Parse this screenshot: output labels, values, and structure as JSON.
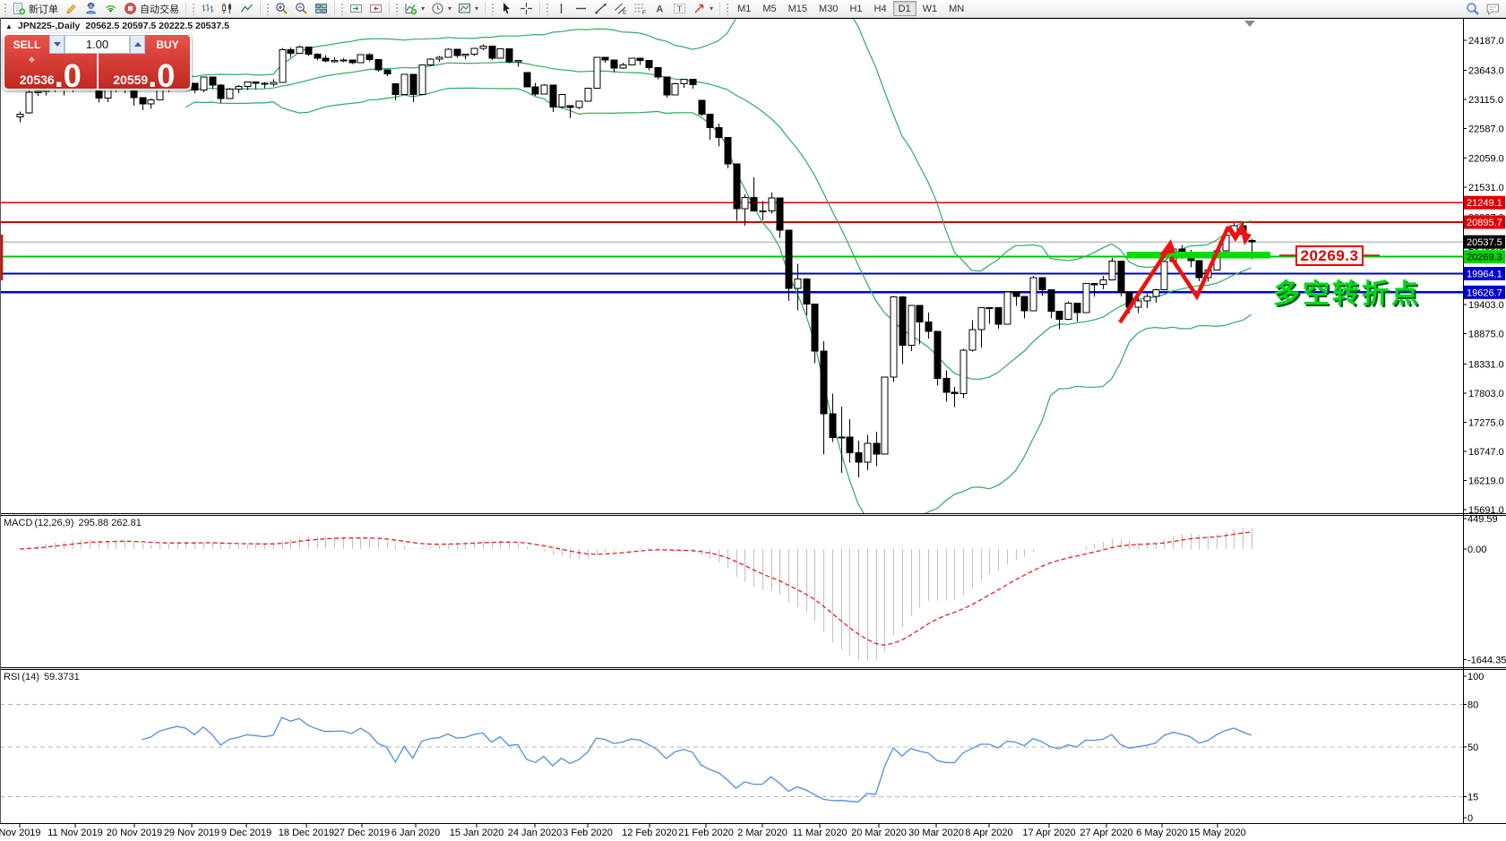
{
  "toolbar": {
    "new_order_label": "新订单",
    "autotrade_label": "自动交易",
    "timeframes": [
      "M1",
      "M5",
      "M15",
      "M30",
      "H1",
      "H4",
      "D1",
      "W1",
      "MN"
    ],
    "active_timeframe": "D1",
    "icons": [
      "new-order",
      "crayon",
      "support",
      "signal",
      "autotrade",
      "bar-chart",
      "candle-chart",
      "line-chart",
      "zoom-in",
      "zoom-out",
      "tile-windows",
      "auto-scroll",
      "chart-shift",
      "indicators",
      "periods",
      "templates",
      "cursor",
      "crosshair",
      "vertical-line",
      "horizontal-line",
      "trendline",
      "equidistant-channel",
      "fibonacci",
      "text",
      "text-label",
      "arrows",
      "search",
      "chat"
    ]
  },
  "window_title": {
    "collapse_arrow": "▲",
    "symbol_period": "JPN225-,Daily",
    "ohlc": "20562.5 20597.5 20222.5 20537.5"
  },
  "trade_panel": {
    "sell_label": "SELL",
    "buy_label": "BUY",
    "volume": "1.00",
    "sell_price_int": "20536",
    "sell_price_frac": ".0",
    "buy_price_int": "20559",
    "buy_price_frac": ".0"
  },
  "chart_data": {
    "type": "candlestick",
    "symbol": "JPN225-",
    "period": "Daily",
    "price_axis_ticks": [
      "24187.0",
      "23643.0",
      "23115.0",
      "22587.0",
      "22059.0",
      "21531.0",
      "20987.0",
      "20459.0",
      "19403.0",
      "18875.0",
      "18331.0",
      "17803.0",
      "17275.0",
      "16747.0",
      "16219.0",
      "15691.0"
    ],
    "x_axis_labels": [
      "Nov 2019",
      "11 Nov 2019",
      "20 Nov 2019",
      "29 Nov 2019",
      "9 Dec 2019",
      "18 Dec 2019",
      "27 Dec 2019",
      "6 Jan 2020",
      "15 Jan 2020",
      "24 Jan 2020",
      "3 Feb 2020",
      "12 Feb 2020",
      "21 Feb 2020",
      "2 Mar 2020",
      "11 Mar 2020",
      "20 Mar 2020",
      "30 Mar 2020",
      "8 Apr 2020",
      "17 Apr 2020",
      "27 Apr 2020",
      "6 May 2020",
      "15 May 2020"
    ],
    "price_lines": [
      {
        "price": 21249.1,
        "label": "21249.1",
        "color": "#dd0000",
        "label_bg": "#dd0000",
        "label_fg": "#ffffff",
        "width": 1.6
      },
      {
        "price": 20895.7,
        "label": "20895.7",
        "color": "#dd0000",
        "label_bg": "#dd0000",
        "label_fg": "#ffffff",
        "width": 1.6
      },
      {
        "price": 20537.5,
        "label": "20537.5",
        "color": "#c0c0c0",
        "label_bg": "#000000",
        "label_fg": "#ffffff",
        "width": 1.6,
        "role": "current-price"
      },
      {
        "price": 20269.3,
        "label": "20269.3",
        "color": "#00c400",
        "label_bg": "#00d400",
        "label_fg": "#000000",
        "width": 2
      },
      {
        "price": 19964.1,
        "label": "19964.1",
        "color": "#0000d0",
        "label_bg": "#0000d0",
        "label_fg": "#ffffff",
        "width": 2.4
      },
      {
        "price": 19626.7,
        "label": "19626.7",
        "color": "#0000d0",
        "label_bg": "#0000d0",
        "label_fg": "#ffffff",
        "width": 2.4
      }
    ],
    "candle_colors": {
      "up_fill": "#ffffff",
      "down_fill": "#000000",
      "outline": "#000000"
    },
    "bollinger": {
      "period": 20,
      "deviation": 2,
      "color": "#2faa62"
    },
    "candles_ohlc": [
      [
        22800,
        22900,
        22700,
        22850
      ],
      [
        22870,
        23280,
        22860,
        23250
      ],
      [
        23250,
        23330,
        23180,
        23260
      ],
      [
        23260,
        23350,
        23190,
        23300
      ],
      [
        23310,
        23420,
        23250,
        23330
      ],
      [
        23330,
        23400,
        23190,
        23390
      ],
      [
        23390,
        23400,
        23250,
        23330
      ],
      [
        23330,
        23540,
        23300,
        23520
      ],
      [
        23480,
        23510,
        23270,
        23320
      ],
      [
        23310,
        23340,
        23060,
        23140
      ],
      [
        23140,
        23340,
        23070,
        23300
      ],
      [
        23300,
        23430,
        23250,
        23420
      ],
      [
        23420,
        23450,
        23230,
        23290
      ],
      [
        23290,
        23300,
        23000,
        23150
      ],
      [
        23150,
        23160,
        22920,
        23040
      ],
      [
        23040,
        23130,
        22950,
        23110
      ],
      [
        23110,
        23300,
        23100,
        23290
      ],
      [
        23290,
        23390,
        23250,
        23370
      ],
      [
        23370,
        23450,
        23300,
        23440
      ],
      [
        23440,
        23450,
        23340,
        23410
      ],
      [
        23410,
        23420,
        23230,
        23290
      ],
      [
        23290,
        23530,
        23250,
        23520
      ],
      [
        23520,
        23530,
        23300,
        23380
      ],
      [
        23380,
        23390,
        23050,
        23135
      ],
      [
        23135,
        23330,
        23130,
        23300
      ],
      [
        23300,
        23380,
        23230,
        23350
      ],
      [
        23350,
        23440,
        23290,
        23430
      ],
      [
        23430,
        23440,
        23310,
        23410
      ],
      [
        23410,
        23430,
        23320,
        23390
      ],
      [
        23390,
        23480,
        23350,
        23425
      ],
      [
        23425,
        24050,
        23420,
        24020
      ],
      [
        24020,
        24060,
        23880,
        23950
      ],
      [
        23950,
        24090,
        23940,
        24065
      ],
      [
        24065,
        24070,
        23900,
        23935
      ],
      [
        23935,
        23950,
        23820,
        23865
      ],
      [
        23865,
        23920,
        23790,
        23815
      ],
      [
        23815,
        23880,
        23780,
        23820
      ],
      [
        23820,
        23870,
        23790,
        23830
      ],
      [
        23830,
        23840,
        23760,
        23785
      ],
      [
        23785,
        23930,
        23780,
        23925
      ],
      [
        23925,
        23950,
        23810,
        23840
      ],
      [
        23840,
        23850,
        23620,
        23655
      ],
      [
        23655,
        23660,
        23540,
        23580
      ],
      [
        23400,
        23410,
        23100,
        23205
      ],
      [
        23205,
        23580,
        23200,
        23575
      ],
      [
        23575,
        23580,
        23070,
        23205
      ],
      [
        23205,
        23750,
        23200,
        23740
      ],
      [
        23740,
        23860,
        23720,
        23850
      ],
      [
        23850,
        23900,
        23800,
        23880
      ],
      [
        23880,
        24040,
        23870,
        24025
      ],
      [
        24025,
        24030,
        23870,
        23915
      ],
      [
        23915,
        23940,
        23850,
        23935
      ],
      [
        23935,
        24050,
        23900,
        24040
      ],
      [
        24040,
        24115,
        24010,
        24085
      ],
      [
        24085,
        24090,
        23830,
        23865
      ],
      [
        23865,
        24035,
        23860,
        24030
      ],
      [
        24030,
        24040,
        23770,
        23795
      ],
      [
        23795,
        23830,
        23710,
        23825
      ],
      [
        23600,
        23610,
        23340,
        23345
      ],
      [
        23345,
        23420,
        23180,
        23215
      ],
      [
        23215,
        23390,
        23210,
        23380
      ],
      [
        23380,
        23385,
        22890,
        22980
      ],
      [
        22980,
        23210,
        22960,
        23205
      ],
      [
        23000,
        23010,
        22780,
        22970
      ],
      [
        22970,
        23090,
        22940,
        23085
      ],
      [
        23085,
        23325,
        23080,
        23320
      ],
      [
        23320,
        23880,
        23320,
        23875
      ],
      [
        23875,
        23880,
        23780,
        23830
      ],
      [
        23830,
        23835,
        23600,
        23685
      ],
      [
        23685,
        23780,
        23670,
        23740
      ],
      [
        23740,
        23870,
        23730,
        23860
      ],
      [
        23860,
        23870,
        23740,
        23825
      ],
      [
        23825,
        23830,
        23640,
        23690
      ],
      [
        23690,
        23700,
        23480,
        23525
      ],
      [
        23525,
        23530,
        23150,
        23195
      ],
      [
        23195,
        23420,
        23190,
        23400
      ],
      [
        23400,
        23490,
        23330,
        23480
      ],
      [
        23480,
        23485,
        23310,
        23385
      ],
      [
        23100,
        23110,
        22820,
        22850
      ],
      [
        22850,
        22860,
        22390,
        22605
      ],
      [
        22605,
        22680,
        22270,
        22425
      ],
      [
        22425,
        22430,
        21870,
        21950
      ],
      [
        21950,
        21960,
        20920,
        21140
      ],
      [
        21140,
        21400,
        20830,
        21345
      ],
      [
        21345,
        21710,
        21080,
        21100
      ],
      [
        21100,
        21280,
        20930,
        21100
      ],
      [
        21100,
        21430,
        21050,
        21330
      ],
      [
        21330,
        21335,
        20610,
        20750
      ],
      [
        20750,
        20760,
        19470,
        19700
      ],
      [
        19700,
        20140,
        19300,
        19870
      ],
      [
        19870,
        19880,
        19210,
        19415
      ],
      [
        19415,
        19420,
        18340,
        18560
      ],
      [
        18560,
        18740,
        16690,
        17430
      ],
      [
        17430,
        17790,
        16920,
        17000
      ],
      [
        17000,
        17560,
        16360,
        17010
      ],
      [
        17010,
        17330,
        16540,
        16725
      ],
      [
        16725,
        16940,
        16280,
        16550
      ],
      [
        16550,
        17050,
        16410,
        16890
      ],
      [
        16890,
        17100,
        16480,
        16700
      ],
      [
        16700,
        18100,
        16690,
        18090
      ],
      [
        18090,
        19560,
        18000,
        19545
      ],
      [
        19545,
        19560,
        18330,
        18665
      ],
      [
        18665,
        19390,
        18560,
        19385
      ],
      [
        19385,
        19390,
        18680,
        19085
      ],
      [
        19085,
        19260,
        18790,
        18915
      ],
      [
        18915,
        18920,
        17940,
        18065
      ],
      [
        18065,
        18210,
        17650,
        17820
      ],
      [
        17820,
        17910,
        17550,
        17790
      ],
      [
        17790,
        18600,
        17710,
        18575
      ],
      [
        18575,
        19120,
        18550,
        18950
      ],
      [
        18950,
        19355,
        18630,
        19350
      ],
      [
        19350,
        19360,
        19060,
        19345
      ],
      [
        19345,
        19350,
        18970,
        19045
      ],
      [
        19045,
        19640,
        19040,
        19635
      ],
      [
        19635,
        19650,
        19380,
        19550
      ],
      [
        19550,
        19560,
        19150,
        19290
      ],
      [
        19290,
        19920,
        19280,
        19895
      ],
      [
        19895,
        19900,
        19560,
        19670
      ],
      [
        19670,
        19680,
        19150,
        19280
      ],
      [
        19280,
        19290,
        18960,
        19140
      ],
      [
        19140,
        19460,
        19120,
        19430
      ],
      [
        19430,
        19440,
        19100,
        19260
      ],
      [
        19260,
        19790,
        19250,
        19785
      ],
      [
        19785,
        19790,
        19550,
        19770
      ],
      [
        19770,
        19920,
        19680,
        19850
      ],
      [
        19850,
        20250,
        19840,
        20195
      ],
      [
        20195,
        20200,
        19550,
        19620
      ],
      [
        19620,
        19630,
        19240,
        19360
      ],
      [
        19360,
        19530,
        19250,
        19470
      ],
      [
        19470,
        19600,
        19340,
        19550
      ],
      [
        19550,
        19690,
        19440,
        19675
      ],
      [
        19675,
        20185,
        19670,
        20180
      ],
      [
        20180,
        20460,
        20150,
        20410
      ],
      [
        20410,
        20480,
        20230,
        20320
      ],
      [
        20320,
        20390,
        20080,
        20200
      ],
      [
        20200,
        20210,
        19830,
        19890
      ],
      [
        19890,
        20070,
        19820,
        20030
      ],
      [
        20030,
        20390,
        20020,
        20380
      ],
      [
        20380,
        20690,
        20360,
        20660
      ],
      [
        20660,
        20880,
        20600,
        20830
      ],
      [
        20830,
        20895,
        20610,
        20680
      ],
      [
        20562.5,
        20597.5,
        20222.5,
        20537.5
      ]
    ],
    "annotations": {
      "support_zone": {
        "price": 20269.3,
        "label": "20269.3",
        "bar_color": "#00dd00",
        "box_color": "#ee0000"
      },
      "text": {
        "value": "多空转折点",
        "color": "#00d91e"
      },
      "zigzag_color": "#ee1111"
    },
    "macd": {
      "name": "MACD",
      "params": "(12,26,9)",
      "values": "295.88 262.81",
      "axis_ticks": [
        "449.59",
        "0.00",
        "-1644.35"
      ],
      "histogram_color": "#c0c0c0",
      "signal_color": "#e02020"
    },
    "rsi": {
      "name": "RSI",
      "params": "(14)",
      "value": "59.3731",
      "axis_ticks": [
        "100",
        "80",
        "50",
        "15",
        "0"
      ],
      "levels": [
        80,
        50,
        15
      ],
      "color": "#4f8fdd"
    }
  }
}
